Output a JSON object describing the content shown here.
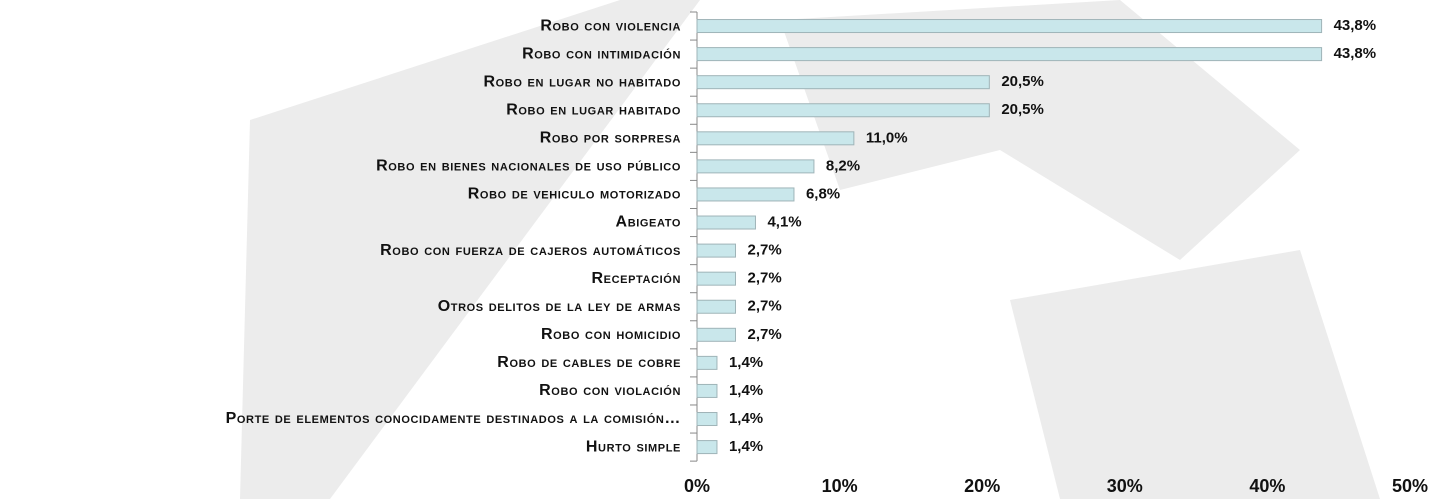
{
  "chart_data": {
    "type": "bar",
    "orientation": "horizontal",
    "categories": [
      "Robo con violencia",
      "Robo con intimidación",
      "Robo en lugar no habitado",
      "Robo en lugar habitado",
      "Robo por sorpresa",
      "Robo en bienes nacionales de uso público",
      "Robo de vehiculo motorizado",
      "Abigeato",
      "Robo con fuerza de cajeros automáticos",
      "Receptación",
      "Otros delitos de la ley de armas",
      "Robo con homicidio",
      "Robo de cables de cobre",
      "Robo con violación",
      "Porte de elementos conocidamente destinados a la comisión…",
      "Hurto simple"
    ],
    "values": [
      43.8,
      43.8,
      20.5,
      20.5,
      11.0,
      8.2,
      6.8,
      4.1,
      2.7,
      2.7,
      2.7,
      2.7,
      1.4,
      1.4,
      1.4,
      1.4
    ],
    "value_labels": [
      "43,8%",
      "43,8%",
      "20,5%",
      "20,5%",
      "11,0%",
      "8,2%",
      "6,8%",
      "4,1%",
      "2,7%",
      "2,7%",
      "2,7%",
      "2,7%",
      "1,4%",
      "1,4%",
      "1,4%",
      "1,4%"
    ],
    "color": "#c9e7eb",
    "xlim": [
      0,
      50
    ],
    "xticks": [
      {
        "value": 0,
        "label": "0%"
      },
      {
        "value": 10,
        "label": "10%"
      },
      {
        "value": 20,
        "label": "20%"
      },
      {
        "value": 30,
        "label": "30%"
      },
      {
        "value": 40,
        "label": "40%"
      },
      {
        "value": 50,
        "label": "50%"
      }
    ],
    "grid": false
  }
}
